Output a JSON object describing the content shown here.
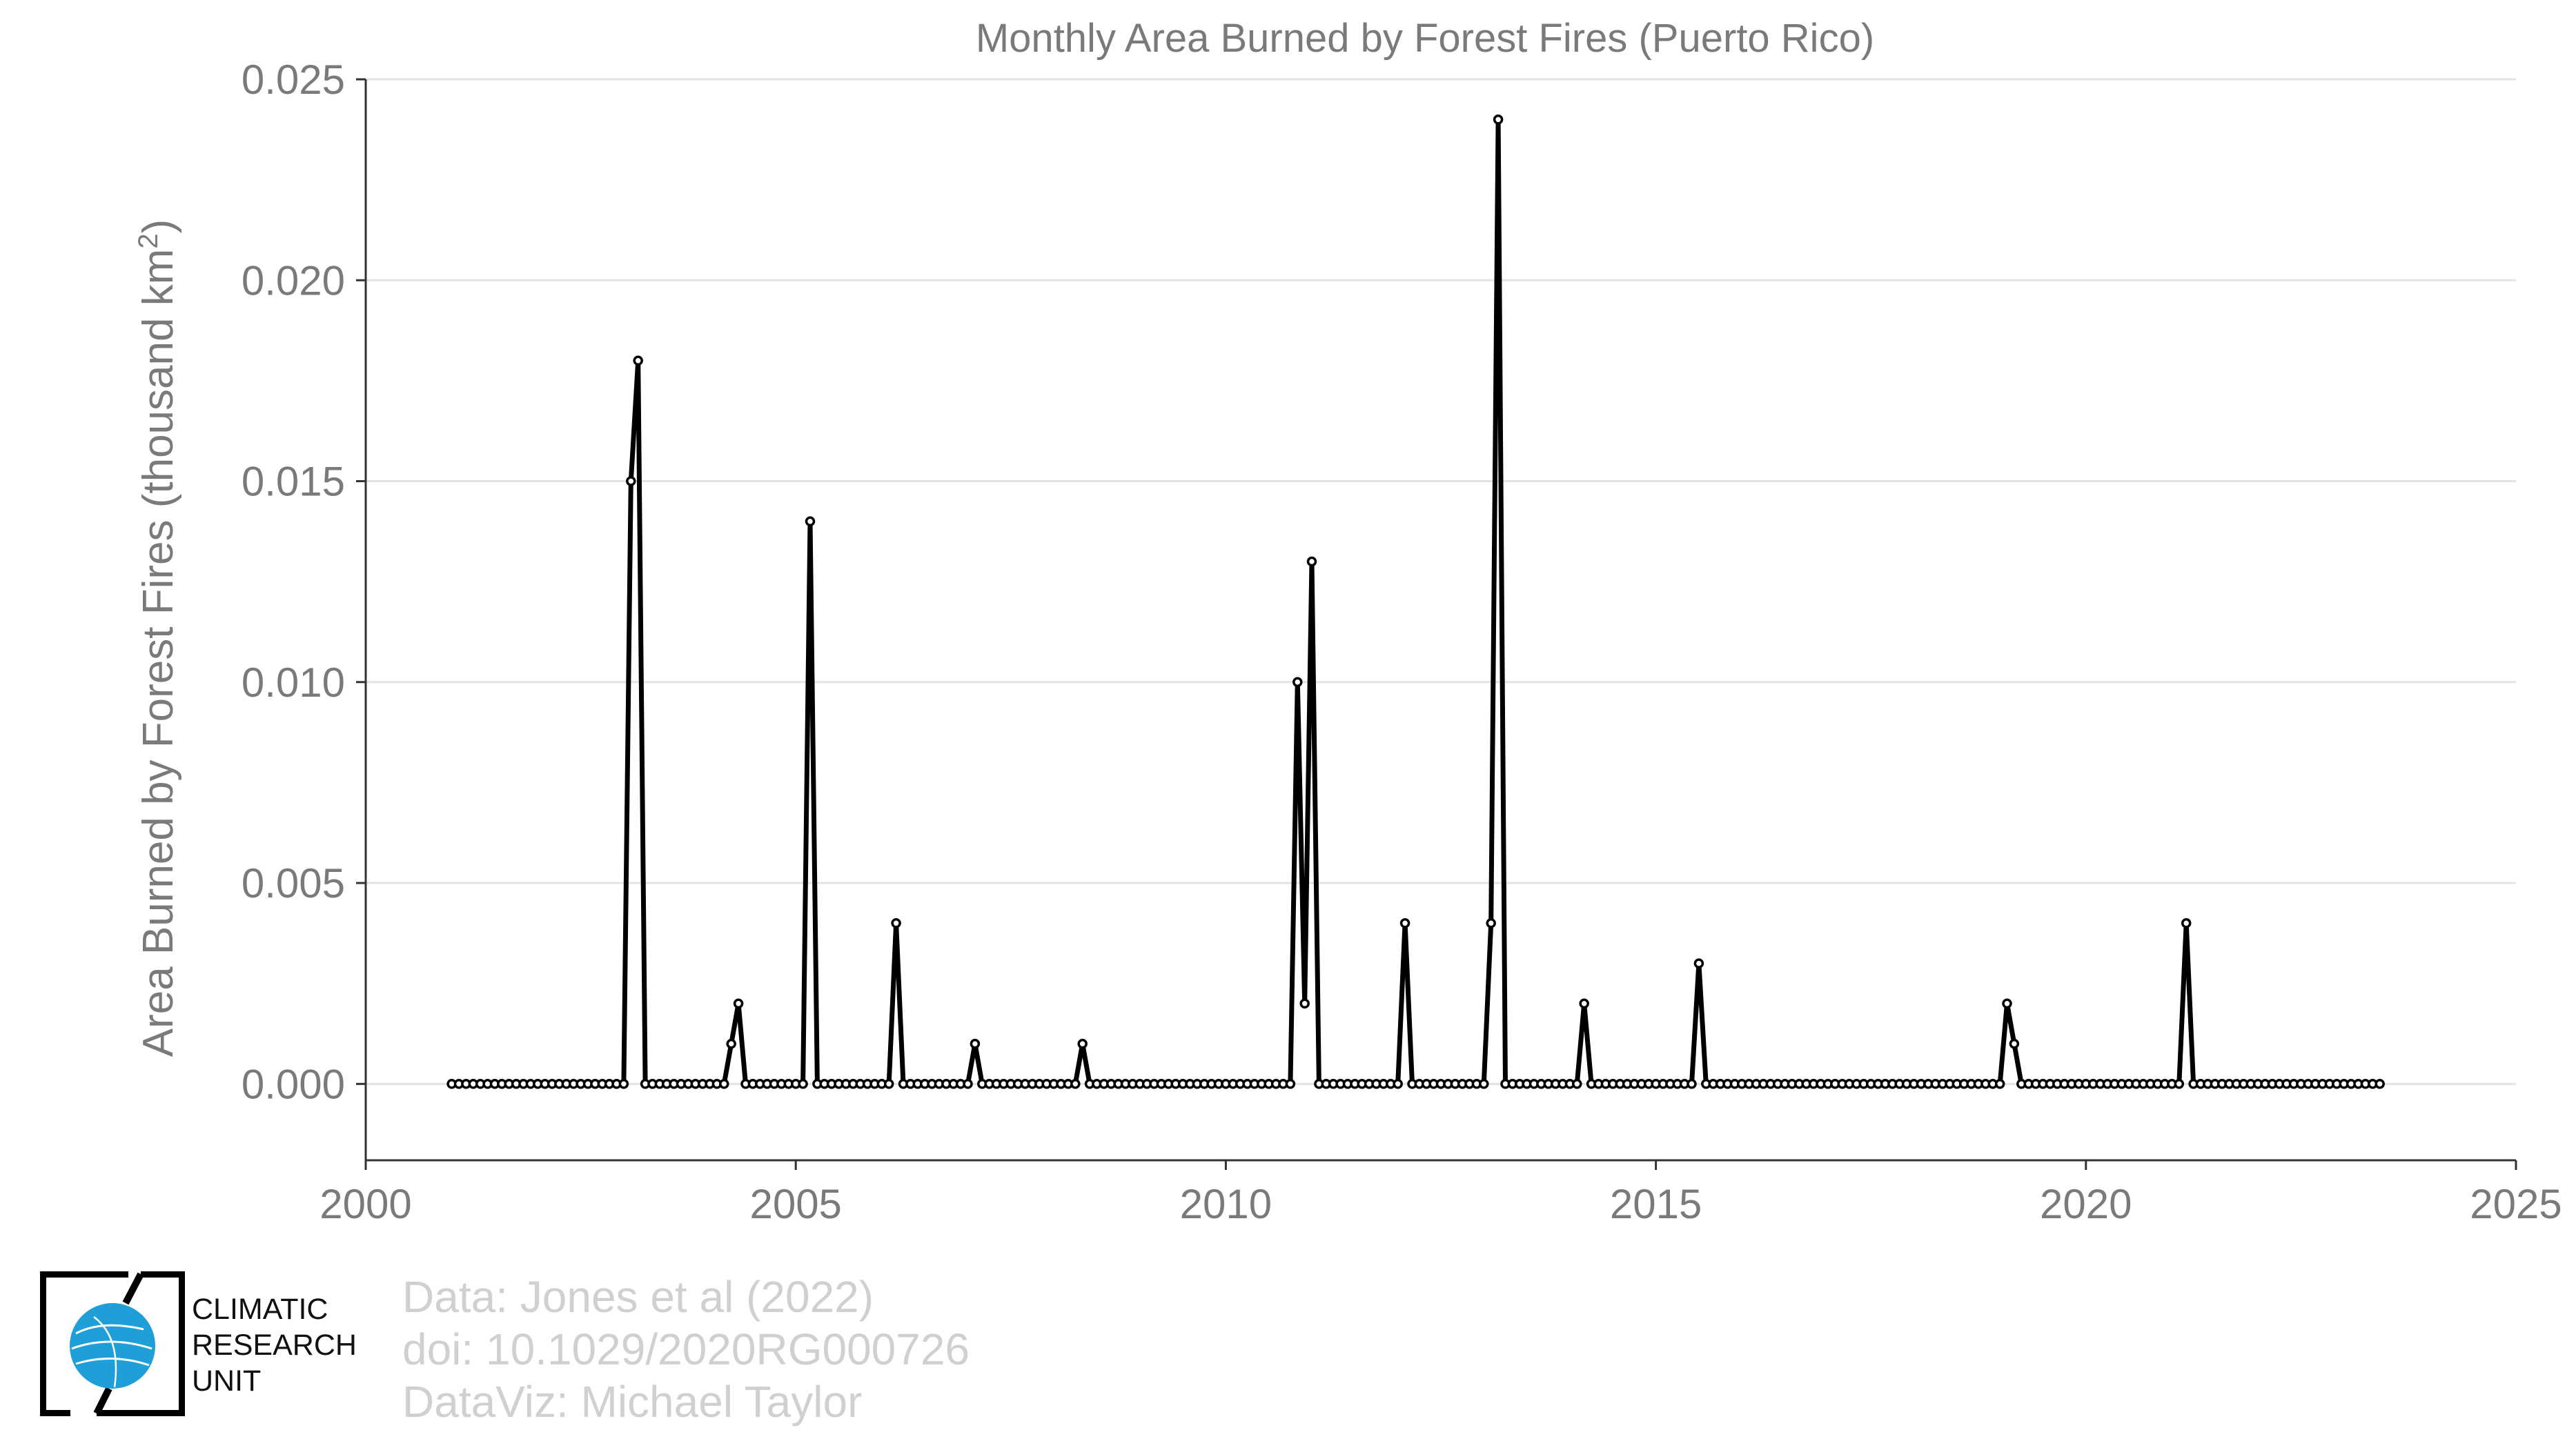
{
  "chart_data": {
    "type": "line",
    "title": "Monthly Area Burned by Forest Fires (Puerto Rico)",
    "xlabel": "",
    "ylabel": "Area Burned by Forest Fires (thousand km",
    "ylabel_sup": "2",
    "ylabel_close": ")",
    "xlim": [
      2000,
      2025
    ],
    "ylim": [
      -0.0019,
      0.025
    ],
    "xticks": [
      2000,
      2005,
      2010,
      2015,
      2020,
      2025
    ],
    "xtick_labels": [
      "2000",
      "2005",
      "2010",
      "2015",
      "2020",
      "2025"
    ],
    "yticks": [
      0.0,
      0.005,
      0.01,
      0.015,
      0.02,
      0.025
    ],
    "ytick_labels": [
      "0.000",
      "0.005",
      "0.010",
      "0.015",
      "0.020",
      "0.025"
    ],
    "grid": true,
    "markers": "open circles",
    "start_year": 2001,
    "start_month": 1,
    "series": [
      {
        "values": [
          0,
          0,
          0,
          0,
          0,
          0,
          0,
          0,
          0,
          0,
          0,
          0,
          0,
          0,
          0,
          0,
          0,
          0,
          0,
          0,
          0,
          0,
          0,
          0,
          0,
          0.015,
          0.018,
          0,
          0,
          0,
          0,
          0,
          0,
          0,
          0,
          0,
          0,
          0,
          0,
          0.001,
          0.002,
          0,
          0,
          0,
          0,
          0,
          0,
          0,
          0,
          0,
          0.014,
          0,
          0,
          0,
          0,
          0,
          0,
          0,
          0,
          0,
          0,
          0,
          0.004,
          0,
          0,
          0,
          0,
          0,
          0,
          0,
          0,
          0,
          0,
          0.001,
          0,
          0,
          0,
          0,
          0,
          0,
          0,
          0,
          0,
          0,
          0,
          0,
          0,
          0,
          0.001,
          0,
          0,
          0,
          0,
          0,
          0,
          0,
          0,
          0,
          0,
          0,
          0,
          0,
          0,
          0,
          0,
          0,
          0,
          0,
          0,
          0,
          0,
          0,
          0,
          0,
          0,
          0,
          0,
          0,
          0.01,
          0.002,
          0.013,
          0,
          0,
          0,
          0,
          0,
          0,
          0,
          0,
          0,
          0,
          0,
          0,
          0.004,
          0,
          0,
          0,
          0,
          0,
          0,
          0,
          0,
          0,
          0,
          0,
          0.004,
          0.024,
          0,
          0,
          0,
          0,
          0,
          0,
          0,
          0,
          0,
          0,
          0,
          0.002,
          0,
          0,
          0,
          0,
          0,
          0,
          0,
          0,
          0,
          0,
          0,
          0,
          0,
          0,
          0,
          0.003,
          0,
          0,
          0,
          0,
          0,
          0,
          0,
          0,
          0,
          0,
          0,
          0,
          0,
          0,
          0,
          0,
          0,
          0,
          0,
          0,
          0,
          0,
          0,
          0,
          0,
          0,
          0,
          0,
          0,
          0,
          0,
          0,
          0,
          0,
          0,
          0,
          0,
          0,
          0,
          0,
          0,
          0,
          0.002,
          0.001,
          0,
          0,
          0,
          0,
          0,
          0,
          0,
          0,
          0,
          0,
          0,
          0,
          0,
          0,
          0,
          0,
          0,
          0,
          0,
          0,
          0,
          0,
          0,
          0.004,
          0,
          0,
          0,
          0,
          0,
          0,
          0,
          0,
          0,
          0,
          0,
          0,
          0,
          0,
          0,
          0,
          0,
          0,
          0,
          0,
          0,
          0,
          0,
          0,
          0,
          0,
          0
        ]
      }
    ]
  },
  "credits": {
    "line1": "Data: Jones et al (2022)",
    "line2": "doi: 10.1029/2020RG000726",
    "line3": "DataViz: Michael Taylor"
  },
  "logo": {
    "line1": "CLIMATIC",
    "line2": "RESEARCH",
    "line3": "UNIT",
    "globe_color": "#1f9fd8"
  }
}
